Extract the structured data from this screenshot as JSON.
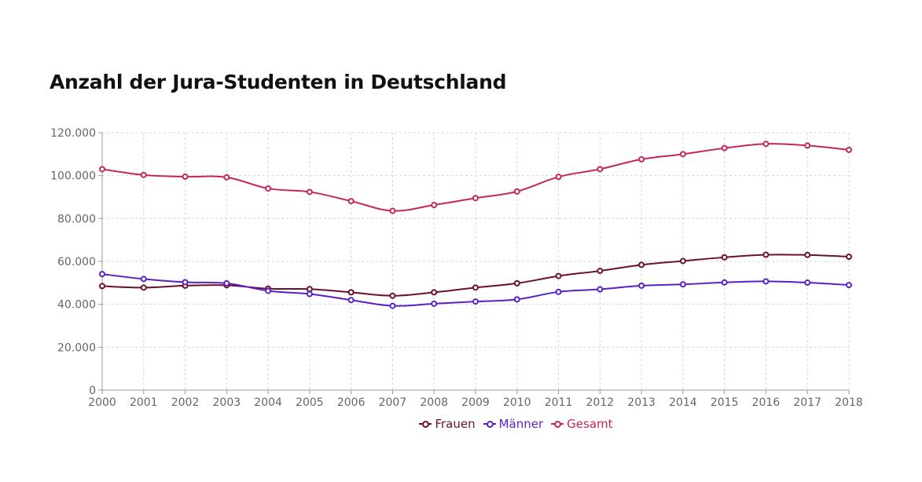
{
  "title": "Anzahl der Jura-Studenten in Deutschland",
  "chart_data": {
    "type": "line",
    "title": "Anzahl der Jura-Studenten in Deutschland",
    "xlabel": "",
    "ylabel": "",
    "x": [
      "2000",
      "2001",
      "2002",
      "2003",
      "2004",
      "2005",
      "2006",
      "2007",
      "2008",
      "2009",
      "2010",
      "2011",
      "2012",
      "2013",
      "2014",
      "2015",
      "2016",
      "2017",
      "2018"
    ],
    "ylim": [
      0,
      120000
    ],
    "yticks": [
      0,
      20000,
      40000,
      60000,
      80000,
      100000,
      120000
    ],
    "ytick_labels": [
      "0",
      "20.000",
      "40.000",
      "60.000",
      "80.000",
      "100.000",
      "120.000"
    ],
    "grid": true,
    "legend_position": "bottom",
    "series": [
      {
        "name": "Frauen",
        "color": "#6b0f2e",
        "values": [
          48500,
          47800,
          48700,
          48900,
          47300,
          47100,
          45600,
          44000,
          45600,
          47800,
          49800,
          53200,
          55600,
          58400,
          60200,
          61900,
          63100,
          63000,
          62200
        ]
      },
      {
        "name": "Männer",
        "color": "#5b1fc7",
        "values": [
          54100,
          51800,
          50300,
          49800,
          46300,
          44800,
          42000,
          39300,
          40300,
          41300,
          42300,
          45800,
          47000,
          48700,
          49300,
          50200,
          50700,
          50100,
          49000
        ]
      },
      {
        "name": "Gesamt",
        "color": "#c4265a",
        "values": [
          103000,
          100300,
          99500,
          99200,
          94000,
          92400,
          88100,
          83600,
          86300,
          89500,
          92600,
          99400,
          103000,
          107600,
          110000,
          112800,
          114800,
          114000,
          112000
        ]
      }
    ]
  }
}
